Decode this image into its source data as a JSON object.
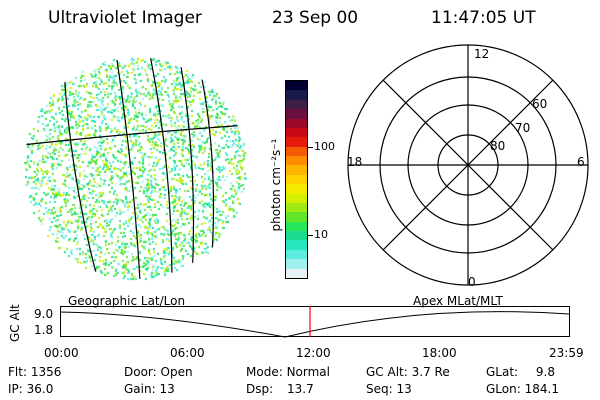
{
  "header": {
    "instrument": "Ultraviolet Imager",
    "date": "23 Sep 00",
    "time": "11:47:05 UT"
  },
  "colorbar": {
    "unit_label": "photon cm⁻²s⁻¹",
    "ticks": [
      "100",
      "10"
    ],
    "colors": [
      "#000033",
      "#1a1a4a",
      "#3c1e46",
      "#6a1040",
      "#9a0a28",
      "#c80a14",
      "#e61a0a",
      "#f55a05",
      "#ff8c00",
      "#ffb400",
      "#ffd200",
      "#f5eb00",
      "#d2f000",
      "#a0eb14",
      "#64e628",
      "#28e65a",
      "#19dc91",
      "#28e6be",
      "#5aebe1",
      "#a0f0f0",
      "#e6f0f5"
    ]
  },
  "polar": {
    "lat_labels": [
      "60",
      "70",
      "80"
    ],
    "mlt_labels": {
      "top": "12",
      "left": "18",
      "right": "6",
      "bottom": "0"
    }
  },
  "timeline": {
    "left_label": "Geographic Lat/Lon",
    "right_label": "Apex MLat/MLT",
    "yaxis_label": "GC Alt",
    "y_ticks": [
      "9.0",
      "1.8"
    ],
    "x_ticks": [
      "00:00",
      "06:00",
      "12:00",
      "18:00",
      "23:59"
    ],
    "marker_color": "#ff0000",
    "marker_time": "11:47:05"
  },
  "status": {
    "row1": [
      {
        "label": "Flt:",
        "value": "1356"
      },
      {
        "label": "Door:",
        "value": "Open"
      },
      {
        "label": "Mode:",
        "value": "Normal"
      },
      {
        "label": "GC Alt:",
        "value": "3.7 Re"
      },
      {
        "label": "GLat:",
        "value": "9.8"
      }
    ],
    "row2": [
      {
        "label": "IP:",
        "value": "36.0"
      },
      {
        "label": "Gain:",
        "value": "13"
      },
      {
        "label": "Dsp:",
        "value": "13.7"
      },
      {
        "label": "Seq:",
        "value": "13"
      },
      {
        "label": "GLon:",
        "value": "184.1"
      }
    ]
  }
}
